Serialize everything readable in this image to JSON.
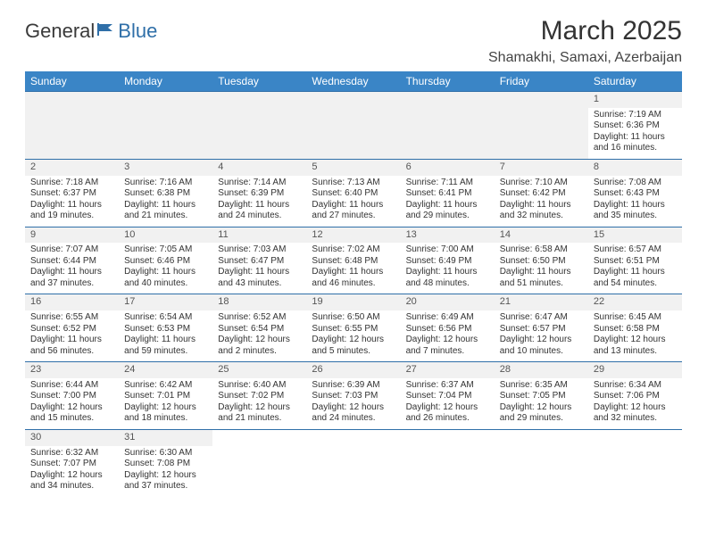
{
  "logo": {
    "text1": "General",
    "text2": "Blue"
  },
  "title": "March 2025",
  "location": "Shamakhi, Samaxi, Azerbaijan",
  "colors": {
    "header_bg": "#3a85c6",
    "header_text": "#ffffff",
    "border": "#2f6fa8",
    "daynum_bg": "#f1f1f1",
    "text": "#333333"
  },
  "day_headers": [
    "Sunday",
    "Monday",
    "Tuesday",
    "Wednesday",
    "Thursday",
    "Friday",
    "Saturday"
  ],
  "weeks": [
    [
      null,
      null,
      null,
      null,
      null,
      null,
      {
        "n": "1",
        "sr": "7:19 AM",
        "ss": "6:36 PM",
        "dl": "11 hours and 16 minutes."
      }
    ],
    [
      {
        "n": "2",
        "sr": "7:18 AM",
        "ss": "6:37 PM",
        "dl": "11 hours and 19 minutes."
      },
      {
        "n": "3",
        "sr": "7:16 AM",
        "ss": "6:38 PM",
        "dl": "11 hours and 21 minutes."
      },
      {
        "n": "4",
        "sr": "7:14 AM",
        "ss": "6:39 PM",
        "dl": "11 hours and 24 minutes."
      },
      {
        "n": "5",
        "sr": "7:13 AM",
        "ss": "6:40 PM",
        "dl": "11 hours and 27 minutes."
      },
      {
        "n": "6",
        "sr": "7:11 AM",
        "ss": "6:41 PM",
        "dl": "11 hours and 29 minutes."
      },
      {
        "n": "7",
        "sr": "7:10 AM",
        "ss": "6:42 PM",
        "dl": "11 hours and 32 minutes."
      },
      {
        "n": "8",
        "sr": "7:08 AM",
        "ss": "6:43 PM",
        "dl": "11 hours and 35 minutes."
      }
    ],
    [
      {
        "n": "9",
        "sr": "7:07 AM",
        "ss": "6:44 PM",
        "dl": "11 hours and 37 minutes."
      },
      {
        "n": "10",
        "sr": "7:05 AM",
        "ss": "6:46 PM",
        "dl": "11 hours and 40 minutes."
      },
      {
        "n": "11",
        "sr": "7:03 AM",
        "ss": "6:47 PM",
        "dl": "11 hours and 43 minutes."
      },
      {
        "n": "12",
        "sr": "7:02 AM",
        "ss": "6:48 PM",
        "dl": "11 hours and 46 minutes."
      },
      {
        "n": "13",
        "sr": "7:00 AM",
        "ss": "6:49 PM",
        "dl": "11 hours and 48 minutes."
      },
      {
        "n": "14",
        "sr": "6:58 AM",
        "ss": "6:50 PM",
        "dl": "11 hours and 51 minutes."
      },
      {
        "n": "15",
        "sr": "6:57 AM",
        "ss": "6:51 PM",
        "dl": "11 hours and 54 minutes."
      }
    ],
    [
      {
        "n": "16",
        "sr": "6:55 AM",
        "ss": "6:52 PM",
        "dl": "11 hours and 56 minutes."
      },
      {
        "n": "17",
        "sr": "6:54 AM",
        "ss": "6:53 PM",
        "dl": "11 hours and 59 minutes."
      },
      {
        "n": "18",
        "sr": "6:52 AM",
        "ss": "6:54 PM",
        "dl": "12 hours and 2 minutes."
      },
      {
        "n": "19",
        "sr": "6:50 AM",
        "ss": "6:55 PM",
        "dl": "12 hours and 5 minutes."
      },
      {
        "n": "20",
        "sr": "6:49 AM",
        "ss": "6:56 PM",
        "dl": "12 hours and 7 minutes."
      },
      {
        "n": "21",
        "sr": "6:47 AM",
        "ss": "6:57 PM",
        "dl": "12 hours and 10 minutes."
      },
      {
        "n": "22",
        "sr": "6:45 AM",
        "ss": "6:58 PM",
        "dl": "12 hours and 13 minutes."
      }
    ],
    [
      {
        "n": "23",
        "sr": "6:44 AM",
        "ss": "7:00 PM",
        "dl": "12 hours and 15 minutes."
      },
      {
        "n": "24",
        "sr": "6:42 AM",
        "ss": "7:01 PM",
        "dl": "12 hours and 18 minutes."
      },
      {
        "n": "25",
        "sr": "6:40 AM",
        "ss": "7:02 PM",
        "dl": "12 hours and 21 minutes."
      },
      {
        "n": "26",
        "sr": "6:39 AM",
        "ss": "7:03 PM",
        "dl": "12 hours and 24 minutes."
      },
      {
        "n": "27",
        "sr": "6:37 AM",
        "ss": "7:04 PM",
        "dl": "12 hours and 26 minutes."
      },
      {
        "n": "28",
        "sr": "6:35 AM",
        "ss": "7:05 PM",
        "dl": "12 hours and 29 minutes."
      },
      {
        "n": "29",
        "sr": "6:34 AM",
        "ss": "7:06 PM",
        "dl": "12 hours and 32 minutes."
      }
    ],
    [
      {
        "n": "30",
        "sr": "6:32 AM",
        "ss": "7:07 PM",
        "dl": "12 hours and 34 minutes."
      },
      {
        "n": "31",
        "sr": "6:30 AM",
        "ss": "7:08 PM",
        "dl": "12 hours and 37 minutes."
      },
      null,
      null,
      null,
      null,
      null
    ]
  ],
  "labels": {
    "sunrise": "Sunrise:",
    "sunset": "Sunset:",
    "daylight": "Daylight:"
  }
}
